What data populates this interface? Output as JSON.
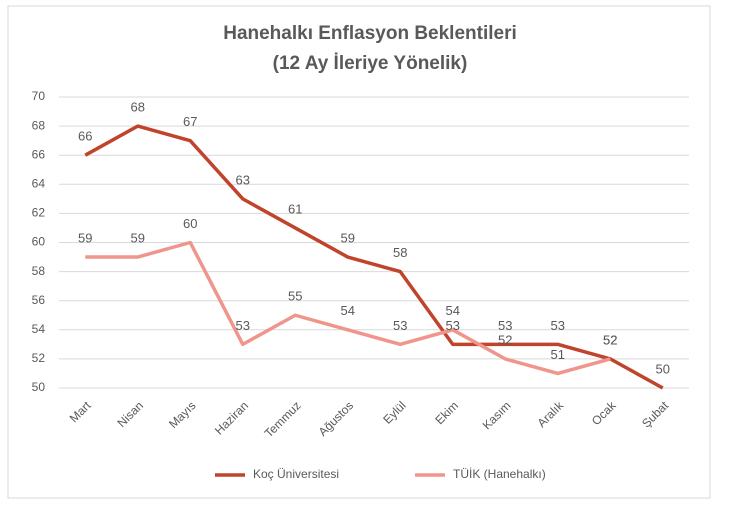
{
  "chart_data": {
    "type": "line",
    "title": "Hanehalkı Enflasyon Beklentileri",
    "subtitle": "(12 Ay İleriye Yönelik)",
    "categories": [
      "Mart",
      "Nisan",
      "Mayıs",
      "Haziran",
      "Temmuz",
      "Ağustos",
      "Eylül",
      "Ekim",
      "Kasım",
      "Aralık",
      "Ocak",
      "Şubat"
    ],
    "series": [
      {
        "name": "Koç Üniversitesi",
        "color": "#c0432b",
        "values": [
          66,
          68,
          67,
          63,
          61,
          59,
          58,
          53,
          53,
          53,
          52,
          50
        ]
      },
      {
        "name": "TÜİK (Hanehalkı)",
        "color": "#f0958b",
        "values": [
          59,
          59,
          60,
          53,
          55,
          54,
          53,
          54,
          52,
          51,
          52,
          null
        ]
      }
    ],
    "ylim": [
      50,
      70
    ],
    "yticks": [
      50,
      52,
      54,
      56,
      58,
      60,
      62,
      64,
      66,
      68,
      70
    ],
    "grid": true,
    "legend": "bottom"
  }
}
